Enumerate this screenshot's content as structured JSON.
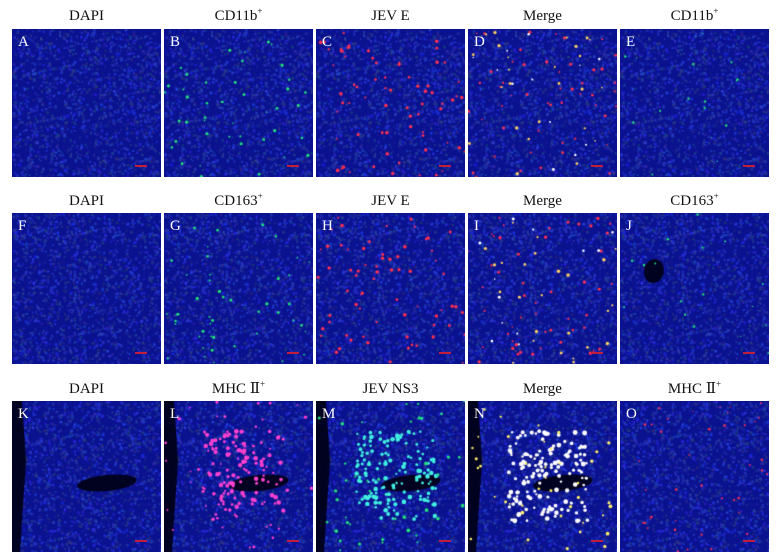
{
  "rows": [
    {
      "titles": [
        {
          "text": "DAPI",
          "sup": ""
        },
        {
          "text": "CD11b",
          "sup": "+"
        },
        {
          "text": "JEV E",
          "sup": ""
        },
        {
          "text": "Merge",
          "sup": ""
        },
        {
          "text": "CD11b",
          "sup": "+"
        }
      ],
      "panels": [
        {
          "letter": "A",
          "stain": "dapi"
        },
        {
          "letter": "B",
          "stain": "marker-green"
        },
        {
          "letter": "C",
          "stain": "virus-red"
        },
        {
          "letter": "D",
          "stain": "merge"
        },
        {
          "letter": "E",
          "stain": "control"
        }
      ]
    },
    {
      "titles": [
        {
          "text": "DAPI",
          "sup": ""
        },
        {
          "text": "CD163",
          "sup": "+"
        },
        {
          "text": "JEV E",
          "sup": ""
        },
        {
          "text": "Merge",
          "sup": ""
        },
        {
          "text": "CD163",
          "sup": "+"
        }
      ],
      "panels": [
        {
          "letter": "F",
          "stain": "dapi"
        },
        {
          "letter": "G",
          "stain": "marker-green"
        },
        {
          "letter": "H",
          "stain": "virus-red"
        },
        {
          "letter": "I",
          "stain": "merge"
        },
        {
          "letter": "J",
          "stain": "control"
        }
      ]
    },
    {
      "titles": [
        {
          "text": "DAPI",
          "sup": ""
        },
        {
          "text": "MHC Ⅱ",
          "sup": "+"
        },
        {
          "text": "JEV NS3",
          "sup": ""
        },
        {
          "text": "Merge",
          "sup": ""
        },
        {
          "text": "MHC Ⅱ",
          "sup": "+"
        }
      ],
      "panels": [
        {
          "letter": "K",
          "stain": "dapi"
        },
        {
          "letter": "L",
          "stain": "marker-magenta"
        },
        {
          "letter": "M",
          "stain": "virus-cyan"
        },
        {
          "letter": "N",
          "stain": "merge-white"
        },
        {
          "letter": "O",
          "stain": "control-red"
        }
      ]
    }
  ],
  "colors": {
    "nucleus": "#1a2fd8",
    "background": "#0a1290",
    "marker_green": "#22e07a",
    "virus_red": "#ff3050",
    "magenta": "#ff40d0",
    "cyan": "#40f0e0",
    "scalebar": "#c01e3a"
  }
}
